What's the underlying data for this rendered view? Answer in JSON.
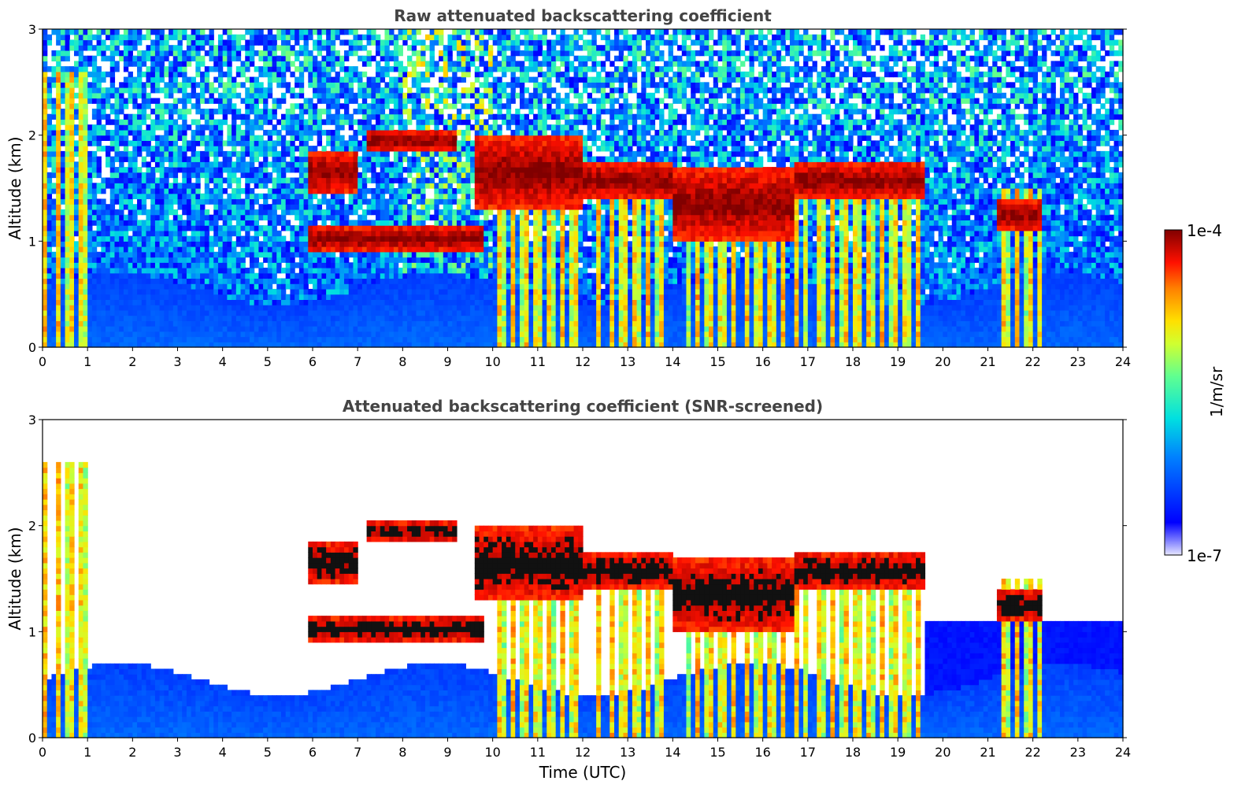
{
  "chart_data": [
    {
      "type": "heatmap",
      "title": "Raw attenuated backscattering coefficient",
      "xlabel": "",
      "ylabel": "Altitude (km)",
      "xlim": [
        0,
        24
      ],
      "ylim": [
        0,
        3
      ],
      "x_ticks": [
        "0",
        "1",
        "2",
        "3",
        "4",
        "5",
        "6",
        "7",
        "8",
        "9",
        "10",
        "11",
        "12",
        "13",
        "14",
        "15",
        "16",
        "17",
        "18",
        "19",
        "20",
        "21",
        "22",
        "23",
        "24"
      ],
      "y_ticks": [
        "0",
        "1",
        "2",
        "3"
      ],
      "screened": false,
      "cloud_layers": [
        {
          "x": [
            5.9,
            7.0
          ],
          "y": [
            1.45,
            1.85
          ]
        },
        {
          "x": [
            7.2,
            9.2
          ],
          "y": [
            1.85,
            2.05
          ]
        },
        {
          "x": [
            5.9,
            9.8
          ],
          "y": [
            0.9,
            1.15
          ]
        },
        {
          "x": [
            9.6,
            12.0
          ],
          "y": [
            1.3,
            2.0
          ]
        },
        {
          "x": [
            12.0,
            14.0
          ],
          "y": [
            1.4,
            1.75
          ]
        },
        {
          "x": [
            14.0,
            16.7
          ],
          "y": [
            1.0,
            1.7
          ]
        },
        {
          "x": [
            16.7,
            19.6
          ],
          "y": [
            1.4,
            1.75
          ]
        },
        {
          "x": [
            21.2,
            22.2
          ],
          "y": [
            1.1,
            1.4
          ]
        }
      ],
      "precipitation_bands": [
        [
          0.0,
          1.0
        ],
        [
          10.0,
          12.0
        ],
        [
          12.2,
          13.8
        ],
        [
          14.3,
          16.3
        ],
        [
          16.4,
          17.0
        ],
        [
          17.2,
          19.6
        ],
        [
          21.2,
          22.2
        ]
      ]
    },
    {
      "type": "heatmap",
      "title": "Attenuated backscattering coefficient (SNR-screened)",
      "xlabel": "Time (UTC)",
      "ylabel": "Altitude (km)",
      "xlim": [
        0,
        24
      ],
      "ylim": [
        0,
        3
      ],
      "x_ticks": [
        "0",
        "1",
        "2",
        "3",
        "4",
        "5",
        "6",
        "7",
        "8",
        "9",
        "10",
        "11",
        "12",
        "13",
        "14",
        "15",
        "16",
        "17",
        "18",
        "19",
        "20",
        "21",
        "22",
        "23",
        "24"
      ],
      "y_ticks": [
        "0",
        "1",
        "2",
        "3"
      ],
      "screened": true
    }
  ],
  "colorbar": {
    "label": "1/m/sr",
    "max_label": "1e-4",
    "min_label": "1e-7",
    "colormap": "jet",
    "range": [
      1e-07,
      0.0001
    ]
  },
  "colors": {
    "background": "#ffffff",
    "title": "#444444",
    "layer_top": "#8b0000"
  }
}
